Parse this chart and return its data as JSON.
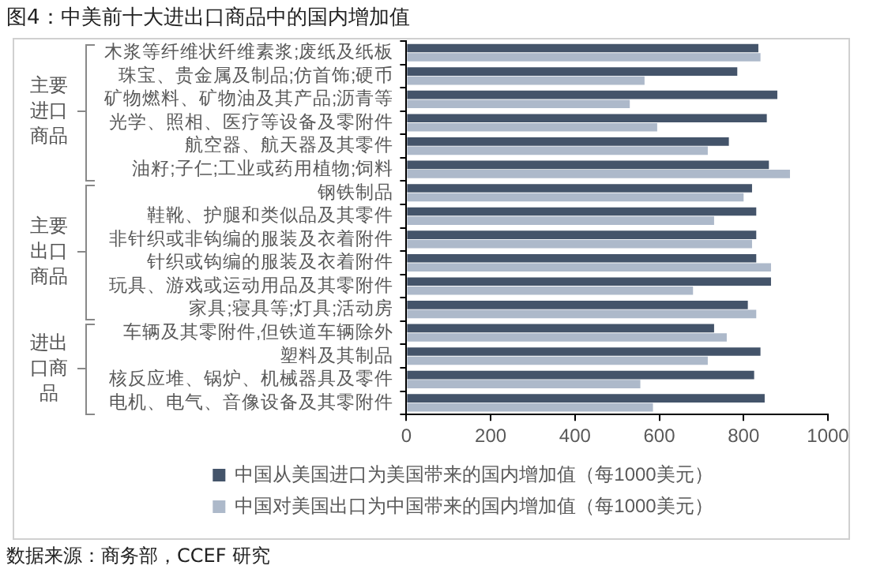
{
  "chart_data": {
    "type": "bar",
    "orientation": "horizontal",
    "title": "图4：中美前十大进出口商品中的国内增加值",
    "categories": [
      "木浆等纤维状纤维素浆;废纸及纸板",
      "珠宝、贵金属及制品;仿首饰;硬币",
      "矿物燃料、矿物油及其产品;沥青等",
      "光学、照相、医疗等设备及零附件",
      "航空器、航天器及其零件",
      "油籽;子仁;工业或药用植物;饲料",
      "钢铁制品",
      "鞋靴、护腿和类似品及其零件",
      "非针织或非钩编的服装及衣着附件",
      "针织或钩编的服装及衣着附件",
      "玩具、游戏或运动用品及其零附件",
      "家具;寝具等;灯具;活动房",
      "车辆及其零附件,但铁道车辆除外",
      "塑料及其制品",
      "核反应堆、锅炉、机械器具及零件",
      "电机、电气、音像设备及其零附件"
    ],
    "series": [
      {
        "name": "中国从美国进口为美国带来的国内增加值（每1000美元）",
        "color": "#44546a",
        "values": [
          835,
          785,
          880,
          855,
          765,
          860,
          820,
          830,
          830,
          830,
          865,
          810,
          730,
          840,
          825,
          850
        ]
      },
      {
        "name": "中国对美国出口为中国带来的国内增加值（每1000美元）",
        "color": "#adb9ca",
        "values": [
          840,
          565,
          530,
          595,
          715,
          910,
          800,
          730,
          820,
          865,
          680,
          830,
          760,
          715,
          555,
          585
        ]
      }
    ],
    "xlim": [
      0,
      1000
    ],
    "xticks": [
      0,
      200,
      400,
      600,
      800,
      1000
    ],
    "grid": false,
    "legend": "bottom",
    "annotations": [
      "主要进口商品",
      "主要出口商品",
      "进出口商品",
      "数据来源：商务部，CCEF 研究"
    ]
  }
}
